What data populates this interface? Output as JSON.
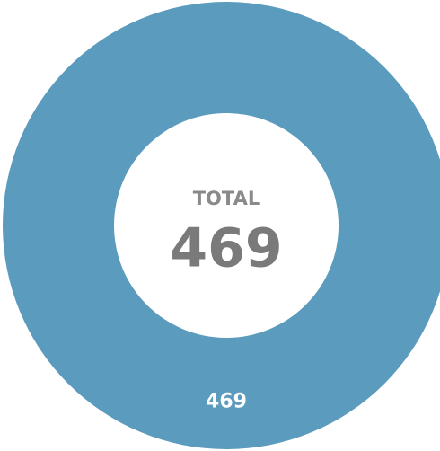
{
  "chart_data": {
    "type": "donut",
    "categories": [
      null
    ],
    "values": [
      469
    ],
    "colors": [
      "#5b9bbd"
    ],
    "center_label": "TOTAL",
    "total": 469
  }
}
